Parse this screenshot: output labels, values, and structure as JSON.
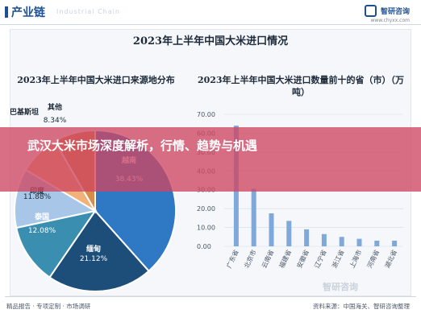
{
  "header": {
    "section_title": "产业链",
    "ghost_text": "Industrial Chain",
    "brand_name": "智研咨询",
    "brand_url": "www.chyxx.com"
  },
  "main_title": "2023年上半年中国大米进口情况",
  "colors": {
    "overlay": "#ce4662",
    "bar": "#7fa8db",
    "pie": [
      "#2e78c4",
      "#1d4e7a",
      "#3a8fb0",
      "#a8c7e8",
      "#f0b27a",
      "#d88c4a"
    ]
  },
  "chart_data": [
    {
      "type": "pie",
      "title": "2023年上半年中国大米进口来源地分布",
      "slices": [
        {
          "label": "越南",
          "value": 38.43,
          "value_label": "38.43%"
        },
        {
          "label": "缅甸",
          "value": 21.12,
          "value_label": "21.12%"
        },
        {
          "label": "泰国",
          "value": 12.08,
          "value_label": "12.08%"
        },
        {
          "label": "印度",
          "value": 11.88,
          "value_label": "11.88%"
        },
        {
          "label": "巴基斯坦",
          "value": 8.15,
          "value_label": ""
        },
        {
          "label": "其他",
          "value": 8.34,
          "value_label": "8.34%"
        }
      ]
    },
    {
      "type": "bar",
      "title": "2023年上半年中国大米进口数量前十的省（市）（万吨）",
      "categories": [
        "广东省",
        "北京市",
        "云南省",
        "福建省",
        "安徽省",
        "辽宁省",
        "浙江省",
        "上海市",
        "河南省",
        "湖北省"
      ],
      "values": [
        64.0,
        30.5,
        17.5,
        13.5,
        9.0,
        6.5,
        5.0,
        4.0,
        3.0,
        3.0
      ],
      "ylim": [
        0,
        70
      ],
      "yticks": [
        "0.00",
        "10.00",
        "20.00",
        "30.00",
        "40.00",
        "50.00",
        "60.00",
        "70.00"
      ]
    }
  ],
  "overlay_title": "武汉大米市场深度解析，行情、趋势与机遇",
  "footer": {
    "links": "精品报告 · 专项定制 · 市场调研",
    "source": "资料来源：中国海关、智研咨询整理"
  },
  "watermark": "智研咨询"
}
